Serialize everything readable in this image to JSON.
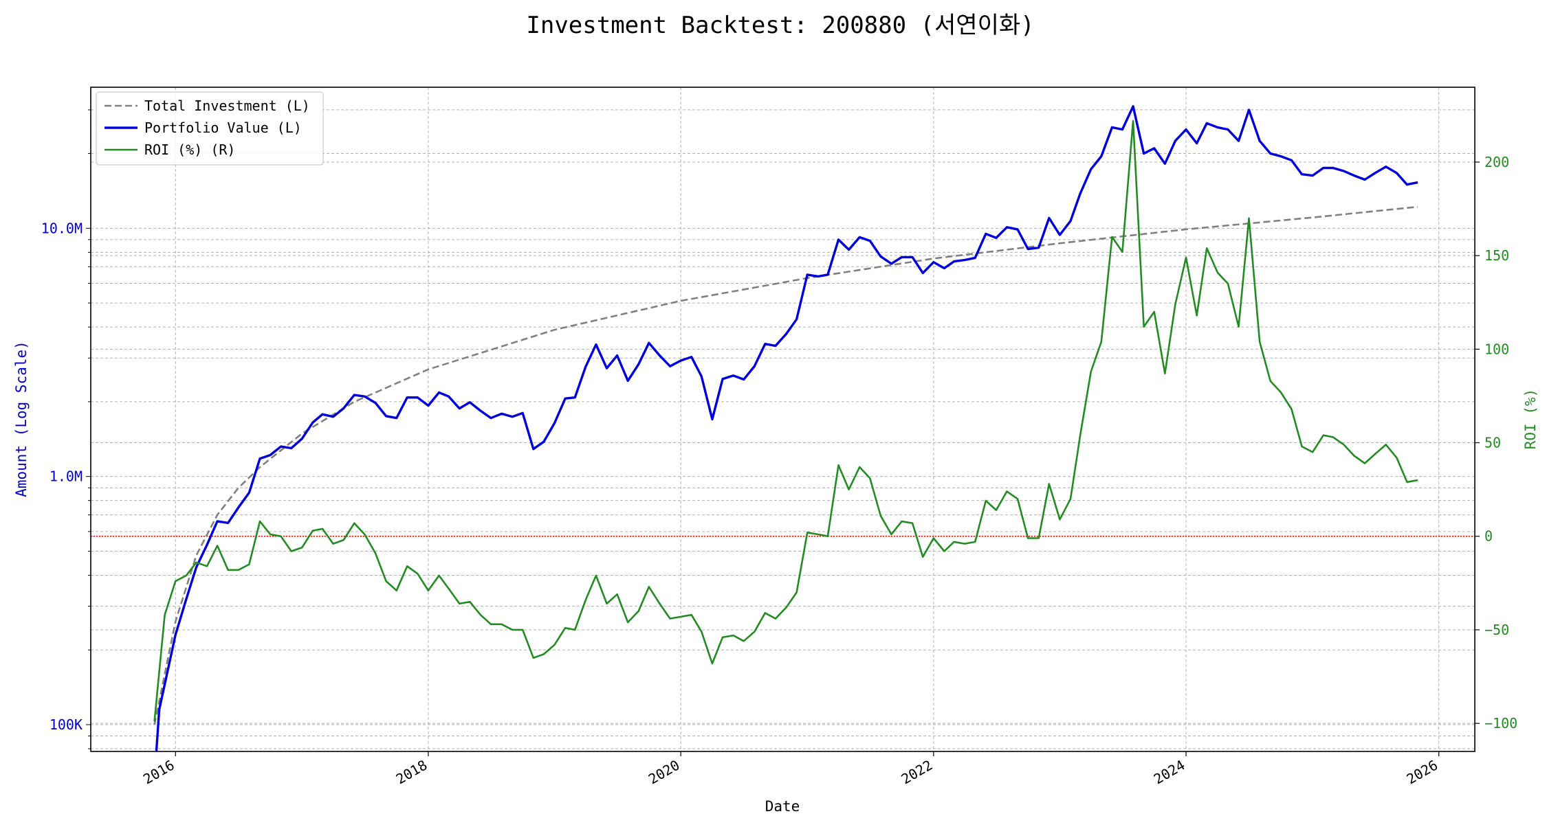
{
  "chart_data": {
    "type": "line",
    "title": "Investment Backtest: 200880 (서연이화)",
    "xlabel": "Date",
    "ylabel_left": "Amount (Log Scale)",
    "ylabel_right": "ROI (%)",
    "y_left_scale": "log",
    "y_left_lim": [
      78000,
      37000000
    ],
    "y_right_lim": [
      -115,
      240
    ],
    "x_lim": [
      "2015-05-01",
      "2026-04-15"
    ],
    "x_ticks": [
      {
        "date": "2016-01-01",
        "label": "2016"
      },
      {
        "date": "2018-01-01",
        "label": "2018"
      },
      {
        "date": "2020-01-01",
        "label": "2020"
      },
      {
        "date": "2022-01-01",
        "label": "2022"
      },
      {
        "date": "2024-01-01",
        "label": "2024"
      },
      {
        "date": "2026-01-01",
        "label": "2026"
      }
    ],
    "y_left_ticks": [
      {
        "value": 100000,
        "label": "100K"
      },
      {
        "value": 1000000,
        "label": "1.0M"
      },
      {
        "value": 10000000,
        "label": "10.0M"
      }
    ],
    "y_right_ticks": [
      {
        "value": -100,
        "label": "−100"
      },
      {
        "value": -50,
        "label": "−50"
      },
      {
        "value": 0,
        "label": "0"
      },
      {
        "value": 50,
        "label": "50"
      },
      {
        "value": 100,
        "label": "100"
      },
      {
        "value": 150,
        "label": "150"
      },
      {
        "value": 200,
        "label": "200"
      }
    ],
    "grid": true,
    "legend_position": "top-left",
    "reference_line": {
      "axis": "right",
      "value": 0,
      "color": "#ff0000",
      "style": "dotted"
    },
    "series": [
      {
        "name": "Total Investment (L)",
        "axis": "left",
        "color": "#808080",
        "style": "dashed",
        "x": [
          "2015-11-01",
          "2016-01-01",
          "2016-03-01",
          "2016-05-01",
          "2016-07-01",
          "2016-09-01",
          "2017-01-01",
          "2017-06-01",
          "2018-01-01",
          "2019-01-01",
          "2020-01-01",
          "2021-01-01",
          "2022-01-01",
          "2023-01-01",
          "2024-01-01",
          "2025-01-01",
          "2025-11-01"
        ],
        "values": [
          100000,
          260000,
          480000,
          700000,
          900000,
          1090000,
          1490000,
          2000000,
          2700000,
          3900000,
          5100000,
          6300000,
          7550000,
          8700000,
          9900000,
          11050000,
          12200000
        ]
      },
      {
        "name": "Portfolio Value (L)",
        "axis": "left",
        "color": "#0000dd",
        "style": "solid",
        "x": [
          "2015-11-01",
          "2015-11-15",
          "2016-01-01",
          "2016-02-01",
          "2016-03-01",
          "2016-04-01",
          "2016-05-01",
          "2016-06-01",
          "2016-07-01",
          "2016-08-01",
          "2016-09-01",
          "2016-10-01",
          "2016-11-01",
          "2016-12-01",
          "2017-01-01",
          "2017-02-01",
          "2017-03-01",
          "2017-04-01",
          "2017-05-01",
          "2017-06-01",
          "2017-07-01",
          "2017-08-01",
          "2017-09-01",
          "2017-10-01",
          "2017-11-01",
          "2017-12-01",
          "2018-01-01",
          "2018-02-01",
          "2018-03-01",
          "2018-04-01",
          "2018-05-01",
          "2018-06-01",
          "2018-07-01",
          "2018-08-01",
          "2018-09-01",
          "2018-10-01",
          "2018-11-01",
          "2018-12-01",
          "2019-01-01",
          "2019-02-01",
          "2019-03-01",
          "2019-04-01",
          "2019-05-01",
          "2019-06-01",
          "2019-07-01",
          "2019-08-01",
          "2019-09-01",
          "2019-10-01",
          "2019-11-01",
          "2019-12-01",
          "2020-01-01",
          "2020-02-01",
          "2020-03-01",
          "2020-04-01",
          "2020-05-01",
          "2020-06-01",
          "2020-07-01",
          "2020-08-01",
          "2020-09-01",
          "2020-10-01",
          "2020-11-01",
          "2020-12-01",
          "2021-01-01",
          "2021-02-01",
          "2021-03-01",
          "2021-04-01",
          "2021-05-01",
          "2021-06-01",
          "2021-07-01",
          "2021-08-01",
          "2021-09-01",
          "2021-10-01",
          "2021-11-01",
          "2021-12-01",
          "2022-01-01",
          "2022-02-01",
          "2022-03-01",
          "2022-04-01",
          "2022-05-01",
          "2022-06-01",
          "2022-07-01",
          "2022-08-01",
          "2022-09-01",
          "2022-10-01",
          "2022-11-01",
          "2022-12-01",
          "2023-01-01",
          "2023-02-01",
          "2023-03-01",
          "2023-04-01",
          "2023-05-01",
          "2023-06-01",
          "2023-07-01",
          "2023-08-01",
          "2023-09-01",
          "2023-10-01",
          "2023-11-01",
          "2023-12-01",
          "2024-01-01",
          "2024-02-01",
          "2024-03-01",
          "2024-04-01",
          "2024-05-01",
          "2024-06-01",
          "2024-07-01",
          "2024-08-01",
          "2024-09-01",
          "2024-10-01",
          "2024-11-01",
          "2024-12-01",
          "2025-01-01",
          "2025-02-01",
          "2025-03-01",
          "2025-04-01",
          "2025-05-01",
          "2025-06-01",
          "2025-07-01",
          "2025-08-01",
          "2025-09-01",
          "2025-10-01",
          "2025-11-01"
        ],
        "values": [
          60000,
          115000,
          230000,
          320000,
          430000,
          530000,
          660000,
          650000,
          750000,
          860000,
          1180000,
          1220000,
          1320000,
          1300000,
          1420000,
          1650000,
          1780000,
          1740000,
          1880000,
          2130000,
          2100000,
          1980000,
          1750000,
          1720000,
          2080000,
          2080000,
          1930000,
          2180000,
          2100000,
          1880000,
          1990000,
          1840000,
          1720000,
          1790000,
          1740000,
          1800000,
          1290000,
          1380000,
          1640000,
          2060000,
          2080000,
          2770000,
          3400000,
          2730000,
          3070000,
          2430000,
          2830000,
          3450000,
          3070000,
          2780000,
          2930000,
          3030000,
          2530000,
          1700000,
          2470000,
          2550000,
          2460000,
          2780000,
          3420000,
          3360000,
          3750000,
          4300000,
          6500000,
          6400000,
          6500000,
          9000000,
          8200000,
          9200000,
          8900000,
          7700000,
          7200000,
          7650000,
          7650000,
          6600000,
          7300000,
          6900000,
          7350000,
          7450000,
          7600000,
          9500000,
          9150000,
          10100000,
          9900000,
          8250000,
          8350000,
          11000000,
          9400000,
          10700000,
          13800000,
          17300000,
          19500000,
          25500000,
          25000000,
          31000000,
          20000000,
          21000000,
          18200000,
          22500000,
          25000000,
          22000000,
          26500000,
          25500000,
          25000000,
          22500000,
          30000000,
          22500000,
          20000000,
          19500000,
          18800000,
          16500000,
          16300000,
          17500000,
          17500000,
          17000000,
          16300000,
          15700000,
          16700000,
          17700000,
          16700000,
          15000000,
          15300000
        ]
      },
      {
        "name": "ROI (%) (R)",
        "axis": "right",
        "color": "#228b22",
        "style": "solid",
        "x": [
          "2015-11-01",
          "2015-12-01",
          "2016-01-01",
          "2016-02-01",
          "2016-03-01",
          "2016-04-01",
          "2016-05-01",
          "2016-06-01",
          "2016-07-01",
          "2016-08-01",
          "2016-09-01",
          "2016-10-01",
          "2016-11-01",
          "2016-12-01",
          "2017-01-01",
          "2017-02-01",
          "2017-03-01",
          "2017-04-01",
          "2017-05-01",
          "2017-06-01",
          "2017-07-01",
          "2017-08-01",
          "2017-09-01",
          "2017-10-01",
          "2017-11-01",
          "2017-12-01",
          "2018-01-01",
          "2018-02-01",
          "2018-03-01",
          "2018-04-01",
          "2018-05-01",
          "2018-06-01",
          "2018-07-01",
          "2018-08-01",
          "2018-09-01",
          "2018-10-01",
          "2018-11-01",
          "2018-12-01",
          "2019-01-01",
          "2019-02-01",
          "2019-03-01",
          "2019-04-01",
          "2019-05-01",
          "2019-06-01",
          "2019-07-01",
          "2019-08-01",
          "2019-09-01",
          "2019-10-01",
          "2019-11-01",
          "2019-12-01",
          "2020-01-01",
          "2020-02-01",
          "2020-03-01",
          "2020-04-01",
          "2020-05-01",
          "2020-06-01",
          "2020-07-01",
          "2020-08-01",
          "2020-09-01",
          "2020-10-01",
          "2020-11-01",
          "2020-12-01",
          "2021-01-01",
          "2021-02-01",
          "2021-03-01",
          "2021-04-01",
          "2021-05-01",
          "2021-06-01",
          "2021-07-01",
          "2021-08-01",
          "2021-09-01",
          "2021-10-01",
          "2021-11-01",
          "2021-12-01",
          "2022-01-01",
          "2022-02-01",
          "2022-03-01",
          "2022-04-01",
          "2022-05-01",
          "2022-06-01",
          "2022-07-01",
          "2022-08-01",
          "2022-09-01",
          "2022-10-01",
          "2022-11-01",
          "2022-12-01",
          "2023-01-01",
          "2023-02-01",
          "2023-03-01",
          "2023-04-01",
          "2023-05-01",
          "2023-06-01",
          "2023-07-01",
          "2023-08-01",
          "2023-09-01",
          "2023-10-01",
          "2023-11-01",
          "2023-12-01",
          "2024-01-01",
          "2024-02-01",
          "2024-03-01",
          "2024-04-01",
          "2024-05-01",
          "2024-06-01",
          "2024-07-01",
          "2024-08-01",
          "2024-09-01",
          "2024-10-01",
          "2024-11-01",
          "2024-12-01",
          "2025-01-01",
          "2025-02-01",
          "2025-03-01",
          "2025-04-01",
          "2025-05-01",
          "2025-06-01",
          "2025-07-01",
          "2025-08-01",
          "2025-09-01",
          "2025-10-01",
          "2025-11-01"
        ],
        "values": [
          -99,
          -42,
          -24,
          -21,
          -14,
          -16,
          -5,
          -18,
          -18,
          -15,
          8,
          1,
          0,
          -8,
          -6,
          3,
          4,
          -4,
          -2,
          7,
          1,
          -9,
          -24,
          -29,
          -16,
          -20,
          -29,
          -21,
          -28,
          -36,
          -35,
          -42,
          -47,
          -47,
          -50,
          -50,
          -65,
          -63,
          -58,
          -49,
          -50,
          -34,
          -21,
          -36,
          -31,
          -46,
          -40,
          -27,
          -36,
          -44,
          -43,
          -42,
          -51,
          -68,
          -54,
          -53,
          -56,
          -51,
          -41,
          -44,
          -38,
          -30,
          2,
          1,
          0,
          38,
          25,
          37,
          31,
          11,
          1,
          8,
          7,
          -11,
          -1,
          -8,
          -3,
          -4,
          -3,
          19,
          14,
          24,
          20,
          -1,
          -1,
          28,
          9,
          20,
          54,
          88,
          104,
          160,
          152,
          222,
          112,
          120,
          87,
          124,
          149,
          118,
          154,
          141,
          135,
          112,
          170,
          104,
          83,
          77,
          68,
          48,
          45,
          54,
          53,
          49,
          43,
          39,
          44,
          49,
          42,
          29,
          30
        ]
      }
    ]
  }
}
